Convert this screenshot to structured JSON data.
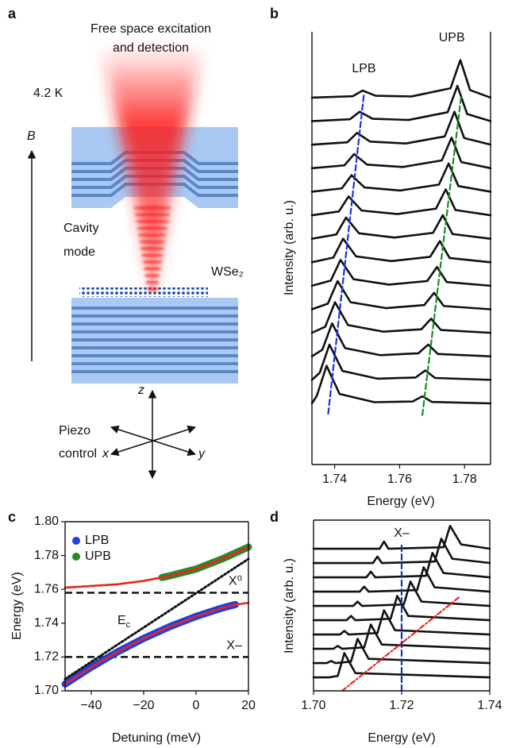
{
  "diagram": {
    "label": "a",
    "title": [
      "Free space excitation",
      "and detection"
    ],
    "temperature": "4.2 K",
    "field": "B",
    "cavity_label": [
      "Cavity",
      "mode"
    ],
    "material": "WSe₂",
    "piezo_label": [
      "Piezo",
      "control"
    ],
    "axes": [
      "x",
      "y",
      "z"
    ]
  },
  "chart_data": [
    {
      "type": "line",
      "label": "b",
      "xlabel": "Energy (eV)",
      "ylabel": "Intensity (arb. u.)",
      "xlim": [
        1.733,
        1.788
      ],
      "ylim": [
        -2.5,
        15.9
      ],
      "xticks": [
        1.74,
        1.76,
        1.78
      ],
      "series": [
        {
          "color": "#111111",
          "x": [
            1.733,
            1.7345,
            1.7375,
            1.7415,
            1.7522,
            1.764,
            1.767,
            1.77,
            1.788
          ],
          "values": [
            0.1,
            0.42,
            1.7,
            0.5,
            0.15,
            0.18,
            0.4,
            0.16,
            0.1
          ]
        },
        {
          "color": "#111111",
          "x": [
            1.733,
            1.7354,
            1.7384,
            1.7424,
            1.7532,
            1.7649,
            1.7679,
            1.7709,
            1.788
          ],
          "values": [
            1.1,
            1.4,
            2.6,
            1.48,
            1.15,
            1.2,
            1.5,
            1.18,
            1.1
          ]
        },
        {
          "color": "#111111",
          "x": [
            1.733,
            1.7362,
            1.7392,
            1.7432,
            1.754,
            1.7658,
            1.7688,
            1.7718,
            1.788
          ],
          "values": [
            2.1,
            2.38,
            3.5,
            2.45,
            2.15,
            2.23,
            2.6,
            2.2,
            2.1
          ]
        },
        {
          "color": "#111111",
          "x": [
            1.733,
            1.7371,
            1.7401,
            1.7441,
            1.7549,
            1.7667,
            1.7697,
            1.7727,
            1.788
          ],
          "values": [
            3.1,
            3.36,
            4.4,
            3.43,
            3.15,
            3.25,
            3.7,
            3.22,
            3.1
          ]
        },
        {
          "color": "#111111",
          "x": [
            1.733,
            1.7379,
            1.7409,
            1.7449,
            1.7558,
            1.7676,
            1.7706,
            1.7736,
            1.788
          ],
          "values": [
            4.1,
            4.34,
            5.3,
            4.4,
            4.15,
            4.28,
            4.8,
            4.24,
            4.1
          ]
        },
        {
          "color": "#111111",
          "x": [
            1.733,
            1.7388,
            1.7418,
            1.7458,
            1.7567,
            1.7685,
            1.7715,
            1.7745,
            1.788
          ],
          "values": [
            5.1,
            5.32,
            6.2,
            5.38,
            5.15,
            5.3,
            5.9,
            5.26,
            5.1
          ]
        },
        {
          "color": "#111111",
          "x": [
            1.733,
            1.7396,
            1.7426,
            1.7466,
            1.7575,
            1.7694,
            1.7724,
            1.7754,
            1.788
          ],
          "values": [
            6.1,
            6.3,
            7.1,
            6.35,
            6.15,
            6.33,
            7.0,
            6.28,
            6.1
          ]
        },
        {
          "color": "#111111",
          "x": [
            1.733,
            1.7405,
            1.7435,
            1.7475,
            1.7584,
            1.7703,
            1.7733,
            1.7763,
            1.788
          ],
          "values": [
            7.1,
            7.28,
            8.0,
            7.33,
            7.15,
            7.35,
            8.1,
            7.3,
            7.1
          ]
        },
        {
          "color": "#111111",
          "x": [
            1.733,
            1.7413,
            1.7443,
            1.7483,
            1.7593,
            1.7712,
            1.7742,
            1.7772,
            1.788
          ],
          "values": [
            8.1,
            8.26,
            8.9,
            8.3,
            8.15,
            8.38,
            9.2,
            8.32,
            8.1
          ]
        },
        {
          "color": "#111111",
          "x": [
            1.733,
            1.7422,
            1.7452,
            1.7492,
            1.7602,
            1.7721,
            1.7751,
            1.7781,
            1.788
          ],
          "values": [
            9.1,
            9.24,
            9.8,
            9.28,
            9.15,
            9.4,
            10.3,
            9.34,
            9.1
          ]
        },
        {
          "color": "#111111",
          "x": [
            1.733,
            1.743,
            1.746,
            1.75,
            1.761,
            1.773,
            1.776,
            1.779,
            1.788
          ],
          "values": [
            10.1,
            10.22,
            10.7,
            10.25,
            10.15,
            10.43,
            11.4,
            10.36,
            10.1
          ]
        },
        {
          "color": "#111111",
          "x": [
            1.733,
            1.7439,
            1.7469,
            1.7509,
            1.7619,
            1.7739,
            1.7769,
            1.7799,
            1.788
          ],
          "values": [
            11.1,
            11.2,
            11.6,
            11.23,
            11.15,
            11.45,
            12.5,
            11.38,
            11.1
          ]
        },
        {
          "color": "#111111",
          "x": [
            1.733,
            1.7447,
            1.7477,
            1.7517,
            1.7628,
            1.7748,
            1.7778,
            1.7808,
            1.788
          ],
          "values": [
            12.1,
            12.18,
            12.5,
            12.2,
            12.15,
            12.48,
            13.6,
            12.4,
            12.1
          ]
        },
        {
          "color": "#111111",
          "x": [
            1.733,
            1.7456,
            1.7486,
            1.7526,
            1.7637,
            1.7757,
            1.7787,
            1.7817,
            1.788
          ],
          "values": [
            13.1,
            13.16,
            13.4,
            13.18,
            13.15,
            13.5,
            14.7,
            13.42,
            13.1
          ]
        }
      ],
      "lines": [
        {
          "name": "LPB",
          "color": "#1f2fe0",
          "linestyle": "dashed",
          "x": [
            1.738,
            1.749
          ],
          "values": [
            -0.34,
            13.24
          ]
        },
        {
          "name": "UPB",
          "color": "#1f8a1f",
          "linestyle": "dashed",
          "x": [
            1.767,
            1.779
          ],
          "values": [
            -0.4,
            13.2
          ]
        }
      ]
    },
    {
      "type": "line",
      "label": "c",
      "xlabel": "Detuning (meV)",
      "ylabel": "Energy (eV)",
      "xlim": [
        -50,
        20
      ],
      "ylim": [
        1.7,
        1.8
      ],
      "xticks": [
        {
          "value": -40,
          "label": "−40"
        },
        {
          "value": -20,
          "label": "−20"
        },
        0,
        20
      ],
      "yticks": [
        {
          "value": 1.7,
          "label": "1.70"
        },
        1.72,
        1.74,
        1.76,
        1.78,
        {
          "value": 1.8,
          "label": "1.80"
        }
      ],
      "legend": "upper left",
      "hlines": [
        {
          "value": 1.758,
          "label": "X⁰"
        },
        {
          "value": 1.72,
          "label": "X–"
        }
      ],
      "series": [
        {
          "name": "LPB",
          "color": "#1f3fe0",
          "marker": true,
          "x": [
            -50,
            -40,
            -30,
            -20,
            -10,
            0,
            10,
            15
          ],
          "values": [
            1.704,
            1.714,
            1.723,
            1.731,
            1.738,
            1.744,
            1.749,
            1.751
          ]
        },
        {
          "name": "UPB",
          "color": "#2a8a2a",
          "marker": true,
          "x": [
            -13,
            -10,
            0,
            10,
            20
          ],
          "values": [
            1.767,
            1.768,
            1.772,
            1.778,
            1.785
          ]
        },
        {
          "color": "#e8261e",
          "x": [
            -50,
            -40,
            -30,
            -20,
            -10,
            0,
            10,
            15,
            20
          ],
          "values": [
            1.704,
            1.714,
            1.723,
            1.731,
            1.738,
            1.744,
            1.749,
            1.751,
            1.752
          ]
        },
        {
          "color": "#e8261e",
          "x": [
            -50,
            -40,
            -30,
            -20,
            -10,
            0,
            10,
            20
          ],
          "values": [
            1.761,
            1.762,
            1.763,
            1.765,
            1.768,
            1.772,
            1.778,
            1.785
          ]
        },
        {
          "color": "#111111",
          "linestyle": "dotted",
          "label": {
            "base": "E",
            "sub": "c"
          },
          "x": [
            -50,
            20
          ],
          "values": [
            1.707,
            1.778
          ]
        }
      ]
    },
    {
      "type": "line",
      "label": "d",
      "xlabel": "Energy (eV)",
      "ylabel": "Intensity (arb. u.)",
      "xlim": [
        1.7,
        1.74
      ],
      "ylim": [
        -0.94,
        11
      ],
      "xticks": [
        {
          "value": 1.7,
          "label": "1.70"
        },
        1.72,
        1.74
      ],
      "series": [
        {
          "color": "#111111",
          "x": [
            1.7,
            1.7015,
            1.7025,
            1.7035,
            1.7055,
            1.707,
            1.7095,
            1.74
          ],
          "values": [
            0,
            0,
            0,
            0,
            0.1,
            1.7,
            0.3,
            0
          ]
        },
        {
          "color": "#111111",
          "x": [
            1.7,
            1.703,
            1.704,
            1.705,
            1.7085,
            1.71,
            1.7125,
            1.74
          ],
          "values": [
            1,
            1,
            1.15,
            1,
            1.1,
            2.7,
            1.3,
            1
          ]
        },
        {
          "color": "#111111",
          "x": [
            1.7,
            1.7045,
            1.7055,
            1.7065,
            1.7115,
            1.713,
            1.7155,
            1.74
          ],
          "values": [
            2,
            2,
            2.2,
            2,
            2.1,
            3.7,
            2.3,
            2
          ]
        },
        {
          "color": "#111111",
          "x": [
            1.7,
            1.706,
            1.707,
            1.708,
            1.7145,
            1.716,
            1.7185,
            1.74
          ],
          "values": [
            3,
            3,
            3.25,
            3,
            3.1,
            4.7,
            3.3,
            3
          ]
        },
        {
          "color": "#111111",
          "x": [
            1.7,
            1.7075,
            1.7085,
            1.7095,
            1.7175,
            1.719,
            1.7215,
            1.74
          ],
          "values": [
            4,
            4,
            4.3,
            4,
            4.1,
            5.7,
            4.3,
            4
          ]
        },
        {
          "color": "#111111",
          "x": [
            1.7,
            1.709,
            1.71,
            1.711,
            1.7205,
            1.722,
            1.7245,
            1.74
          ],
          "values": [
            5,
            5,
            5.3,
            5,
            5.1,
            6.7,
            5.3,
            5
          ]
        },
        {
          "color": "#111111",
          "x": [
            1.7,
            1.7105,
            1.7115,
            1.7125,
            1.7235,
            1.725,
            1.7275,
            1.74
          ],
          "values": [
            6,
            6,
            6.35,
            6,
            6.1,
            7.7,
            6.3,
            6
          ]
        },
        {
          "color": "#111111",
          "x": [
            1.7,
            1.712,
            1.713,
            1.714,
            1.7255,
            1.727,
            1.7295,
            1.74
          ],
          "values": [
            7,
            7,
            7.4,
            7,
            7.1,
            8.7,
            7.3,
            7
          ]
        },
        {
          "color": "#111111",
          "x": [
            1.7,
            1.7135,
            1.7145,
            1.7155,
            1.7275,
            1.729,
            1.7315,
            1.74
          ],
          "values": [
            8,
            8,
            8.45,
            8,
            8.1,
            9.7,
            8.3,
            8
          ]
        },
        {
          "color": "#111111",
          "x": [
            1.7,
            1.715,
            1.716,
            1.717,
            1.7295,
            1.731,
            1.7335,
            1.74
          ],
          "values": [
            9,
            9,
            9.5,
            9,
            9.1,
            10.6,
            9.3,
            9
          ]
        }
      ],
      "lines": [
        {
          "color": "#e8261e",
          "linestyle": "dashdot",
          "x": [
            1.7065,
            1.733
          ],
          "values": [
            -0.94,
            5.6
          ]
        },
        {
          "name": "X–",
          "color": "#1f2fb0",
          "linestyle": "dashed",
          "x": [
            1.72,
            1.72
          ],
          "values": [
            -0.94,
            9.3
          ]
        }
      ]
    }
  ]
}
